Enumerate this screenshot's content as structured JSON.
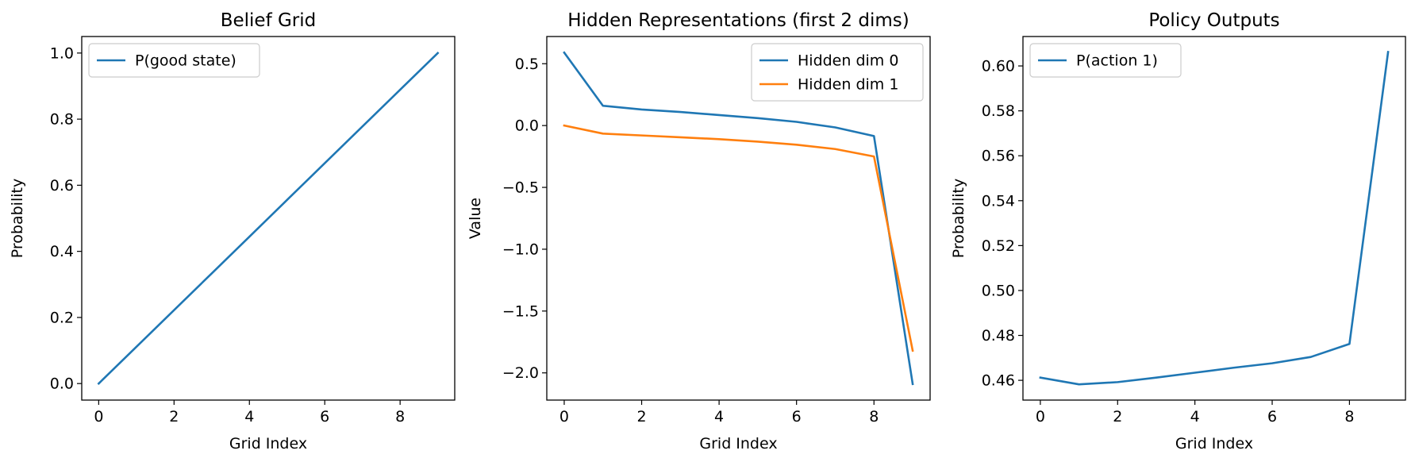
{
  "chart_data": [
    {
      "type": "line",
      "title": "Belief Grid",
      "xlabel": "Grid Index",
      "ylabel": "Probability",
      "xlim": [
        -0.45,
        9.45
      ],
      "ylim": [
        -0.05,
        1.05
      ],
      "xticks": [
        0,
        2,
        4,
        6,
        8
      ],
      "xtick_labels": [
        "0",
        "2",
        "4",
        "6",
        "8"
      ],
      "yticks": [
        0.0,
        0.2,
        0.4,
        0.6,
        0.8,
        1.0
      ],
      "ytick_labels": [
        "0.0",
        "0.2",
        "0.4",
        "0.6",
        "0.8",
        "1.0"
      ],
      "grid": false,
      "legend_position": "top-left",
      "x": [
        0,
        1,
        2,
        3,
        4,
        5,
        6,
        7,
        8,
        9
      ],
      "series": [
        {
          "name": "P(good state)",
          "color": "#1f77b4",
          "values": [
            0.0,
            0.1111,
            0.2222,
            0.3333,
            0.4444,
            0.5556,
            0.6667,
            0.7778,
            0.8889,
            1.0
          ]
        }
      ]
    },
    {
      "type": "line",
      "title": "Hidden Representations (first 2 dims)",
      "xlabel": "Grid Index",
      "ylabel": "Value",
      "xlim": [
        -0.45,
        9.45
      ],
      "ylim": [
        -2.22,
        0.72
      ],
      "xticks": [
        0,
        2,
        4,
        6,
        8
      ],
      "xtick_labels": [
        "0",
        "2",
        "4",
        "6",
        "8"
      ],
      "yticks": [
        0.5,
        0.0,
        -0.5,
        -1.0,
        -1.5,
        -2.0
      ],
      "ytick_labels": [
        "0.5",
        "0.0",
        "−0.5",
        "−1.0",
        "−1.5",
        "−2.0"
      ],
      "grid": false,
      "legend_position": "top-right",
      "x": [
        0,
        1,
        2,
        3,
        4,
        5,
        6,
        7,
        8,
        9
      ],
      "series": [
        {
          "name": "Hidden dim 0",
          "color": "#1f77b4",
          "values": [
            0.59,
            0.16,
            0.13,
            0.11,
            0.085,
            0.06,
            0.03,
            -0.015,
            -0.085,
            -2.09
          ]
        },
        {
          "name": "Hidden dim 1",
          "color": "#ff7f0e",
          "values": [
            0.0,
            -0.065,
            -0.08,
            -0.095,
            -0.11,
            -0.13,
            -0.155,
            -0.19,
            -0.25,
            -1.82
          ]
        }
      ]
    },
    {
      "type": "line",
      "title": "Policy Outputs",
      "xlabel": "Grid Index",
      "ylabel": "Probability",
      "xlim": [
        -0.45,
        9.45
      ],
      "ylim": [
        0.4512,
        0.6131
      ],
      "xticks": [
        0,
        2,
        4,
        6,
        8
      ],
      "xtick_labels": [
        "0",
        "2",
        "4",
        "6",
        "8"
      ],
      "yticks": [
        0.46,
        0.48,
        0.5,
        0.52,
        0.54,
        0.56,
        0.58,
        0.6
      ],
      "ytick_labels": [
        "0.46",
        "0.48",
        "0.50",
        "0.52",
        "0.54",
        "0.56",
        "0.58",
        "0.60"
      ],
      "grid": false,
      "legend_position": "top-left",
      "x": [
        0,
        1,
        2,
        3,
        4,
        5,
        6,
        7,
        8,
        9
      ],
      "series": [
        {
          "name": "P(action 1)",
          "color": "#1f77b4",
          "values": [
            0.4612,
            0.4582,
            0.4592,
            0.4612,
            0.4634,
            0.4656,
            0.4676,
            0.4704,
            0.4762,
            0.6062
          ]
        }
      ]
    }
  ]
}
